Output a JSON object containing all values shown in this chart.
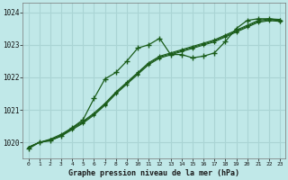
{
  "title": "Graphe pression niveau de la mer (hPa)",
  "background_color": "#c0e8e8",
  "grid_color": "#aad4d4",
  "line_color": "#1a5c1a",
  "xlim": [
    -0.5,
    23.5
  ],
  "ylim": [
    1019.5,
    1024.3
  ],
  "yticks": [
    1020,
    1021,
    1022,
    1023,
    1024
  ],
  "xticks": [
    0,
    1,
    2,
    3,
    4,
    5,
    6,
    7,
    8,
    9,
    10,
    11,
    12,
    13,
    14,
    15,
    16,
    17,
    18,
    19,
    20,
    21,
    22,
    23
  ],
  "series1_x": [
    0,
    1,
    2,
    3,
    4,
    5,
    6,
    7,
    8,
    9,
    10,
    11,
    12,
    13,
    14,
    15,
    16,
    17,
    18,
    19,
    20,
    21,
    22,
    23
  ],
  "series1_y": [
    1019.8,
    1020.0,
    1020.05,
    1020.2,
    1020.45,
    1020.7,
    1021.35,
    1021.95,
    1022.15,
    1022.5,
    1022.9,
    1023.0,
    1023.2,
    1022.7,
    1022.7,
    1022.6,
    1022.65,
    1022.75,
    1023.1,
    1023.5,
    1023.75,
    1023.8,
    1023.8,
    1023.75
  ],
  "series2_x": [
    0,
    1,
    2,
    3,
    4,
    5,
    6,
    7,
    8,
    9,
    10,
    11,
    12,
    13,
    14,
    15,
    16,
    17,
    18,
    19,
    20,
    21,
    22,
    23
  ],
  "series2_y": [
    1019.85,
    1020.0,
    1020.1,
    1020.25,
    1020.45,
    1020.65,
    1020.9,
    1021.2,
    1021.55,
    1021.85,
    1022.15,
    1022.45,
    1022.65,
    1022.75,
    1022.85,
    1022.95,
    1023.05,
    1023.15,
    1023.3,
    1023.45,
    1023.6,
    1023.75,
    1023.8,
    1023.78
  ],
  "series3_x": [
    0,
    1,
    2,
    3,
    4,
    5,
    6,
    7,
    8,
    9,
    10,
    11,
    12,
    13,
    14,
    15,
    16,
    17,
    18,
    19,
    20,
    21,
    22,
    23
  ],
  "series3_y": [
    1019.85,
    1020.0,
    1020.08,
    1020.22,
    1020.42,
    1020.62,
    1020.87,
    1021.17,
    1021.52,
    1021.82,
    1022.12,
    1022.42,
    1022.62,
    1022.72,
    1022.82,
    1022.92,
    1023.02,
    1023.12,
    1023.27,
    1023.42,
    1023.57,
    1023.72,
    1023.77,
    1023.75
  ],
  "series4_x": [
    0,
    1,
    2,
    3,
    4,
    5,
    6,
    7,
    8,
    9,
    10,
    11,
    12,
    13,
    14,
    15,
    16,
    17,
    18,
    19,
    20,
    21,
    22,
    23
  ],
  "series4_y": [
    1019.85,
    1020.0,
    1020.06,
    1020.19,
    1020.39,
    1020.59,
    1020.84,
    1021.14,
    1021.49,
    1021.79,
    1022.09,
    1022.39,
    1022.59,
    1022.69,
    1022.79,
    1022.89,
    1022.99,
    1023.09,
    1023.24,
    1023.39,
    1023.54,
    1023.69,
    1023.74,
    1023.72
  ]
}
